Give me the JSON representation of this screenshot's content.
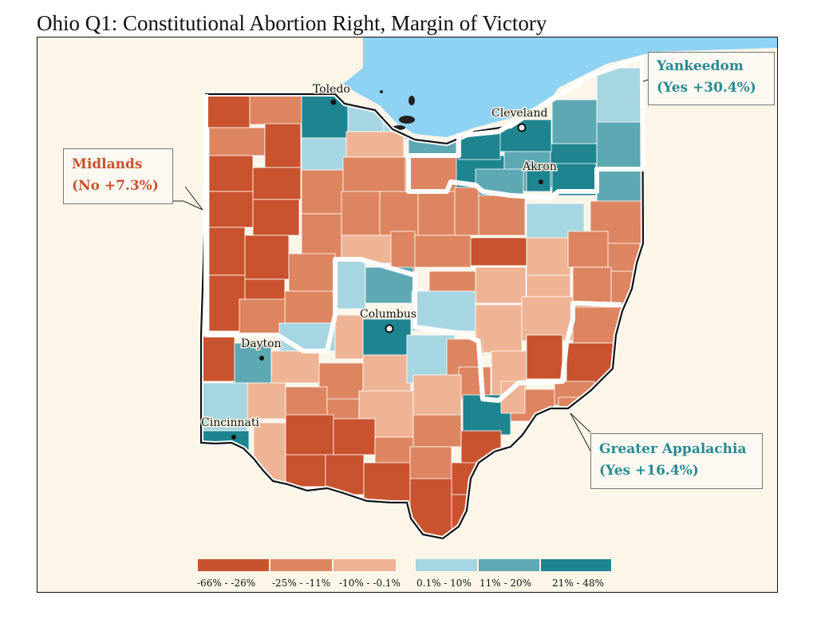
{
  "title": "Ohio Q1: Constitutional Abortion Right, Margin of Victory",
  "colors": {
    "lake": "#8fd3f4",
    "background": "#fbf6e8",
    "no_strong": "#c9532e",
    "no_mid": "#dd8560",
    "no_light": "#efb496",
    "yes_light": "#a6d6e2",
    "yes_mid": "#5ea8b4",
    "yes_strong": "#1e8590",
    "no_region_text": "#c9532e",
    "yes_region_text": "#2a8a92"
  },
  "regions": {
    "midlands": {
      "name": "Midlands",
      "result": "(No +7.3%)"
    },
    "yankeedom": {
      "name": "Yankeedom",
      "result": "(Yes +30.4%)"
    },
    "appalachia": {
      "name": "Greater Appalachia",
      "result": "(Yes +16.4%)"
    }
  },
  "cities": [
    "Toledo",
    "Cleveland",
    "Akron",
    "Columbus",
    "Dayton",
    "Cincinnati"
  ],
  "legend": [
    {
      "label": "-66% - -26%",
      "color": "#c9532e"
    },
    {
      "label": "-25% - -11%",
      "color": "#dd8560"
    },
    {
      "label": "-10% - -0.1%",
      "color": "#efb496"
    },
    {
      "label": "0.1% - 10%",
      "color": "#a6d6e2"
    },
    {
      "label": "11% - 20%",
      "color": "#5ea8b4"
    },
    {
      "label": "21% - 48%",
      "color": "#1e8590"
    }
  ]
}
